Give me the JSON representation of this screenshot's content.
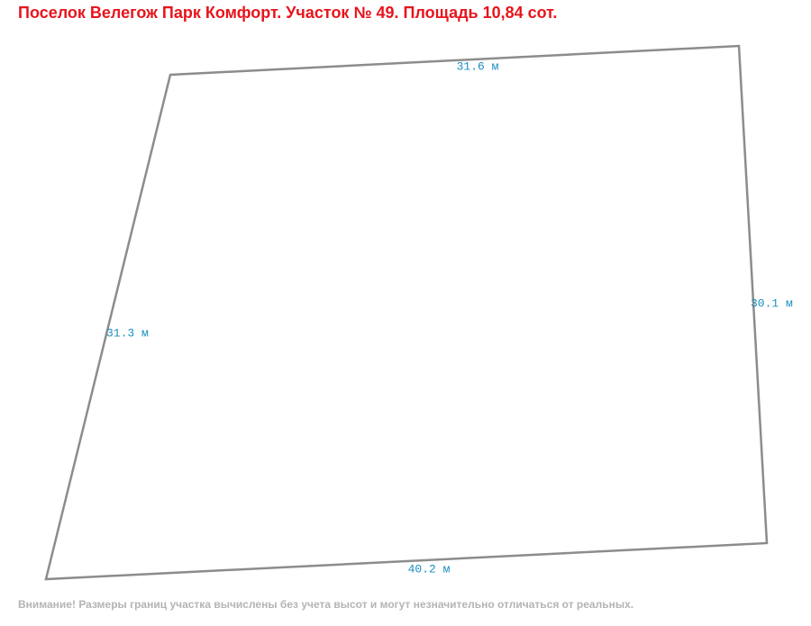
{
  "header": {
    "title": "Поселок Велегож Парк Комфорт. Участок № 49. Площадь 10,84 сот."
  },
  "plot": {
    "edges": [
      {
        "label": "31.6 м"
      },
      {
        "label": "30.1 м"
      },
      {
        "label": "40.2 м"
      },
      {
        "label": "31.3 м"
      }
    ]
  },
  "footer": {
    "note": "Внимание! Размеры границ участка вычислены без учета высот и могут незначительно отличаться от реальных."
  }
}
